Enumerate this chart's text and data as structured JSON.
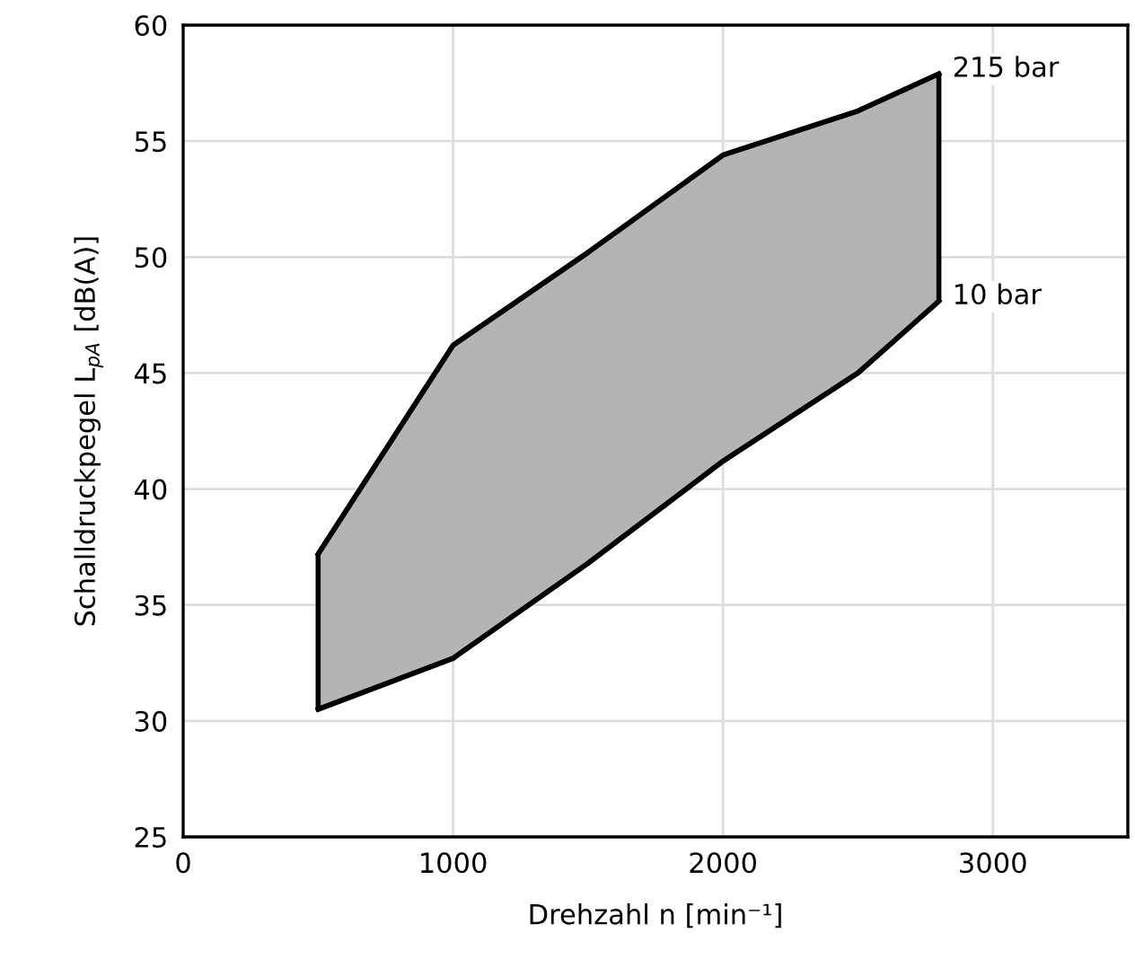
{
  "chart_data": {
    "type": "line",
    "xlabel": "Drehzahl n [min⁻¹]",
    "ylabel": "Schalldruckpegel L$_{pA}$ [dB(A)]",
    "x": [
      500,
      1000,
      1500,
      2000,
      2500,
      2800
    ],
    "series": [
      {
        "name": "215 bar",
        "color": "#000000",
        "values": [
          37.2,
          46.2,
          50.2,
          54.4,
          56.3,
          57.9
        ],
        "lower": [
          30.5,
          32.7,
          36.8,
          41.2,
          45.0,
          48.1
        ],
        "upper": [
          37.2,
          46.2,
          50.2,
          54.4,
          56.3,
          57.9
        ]
      },
      {
        "name": "10 bar",
        "color": "#000000",
        "values": [
          30.5,
          32.7,
          36.8,
          41.2,
          45.0,
          48.1
        ]
      }
    ],
    "xlim": [
      0,
      3500
    ],
    "xticks": [
      0,
      1000,
      2000,
      3000
    ],
    "ylim": [
      25,
      60
    ],
    "yticks": [
      25,
      30,
      35,
      40,
      45,
      50,
      55,
      60
    ],
    "grid": true,
    "marker": "none",
    "line_style": "solid",
    "legend": false
  }
}
